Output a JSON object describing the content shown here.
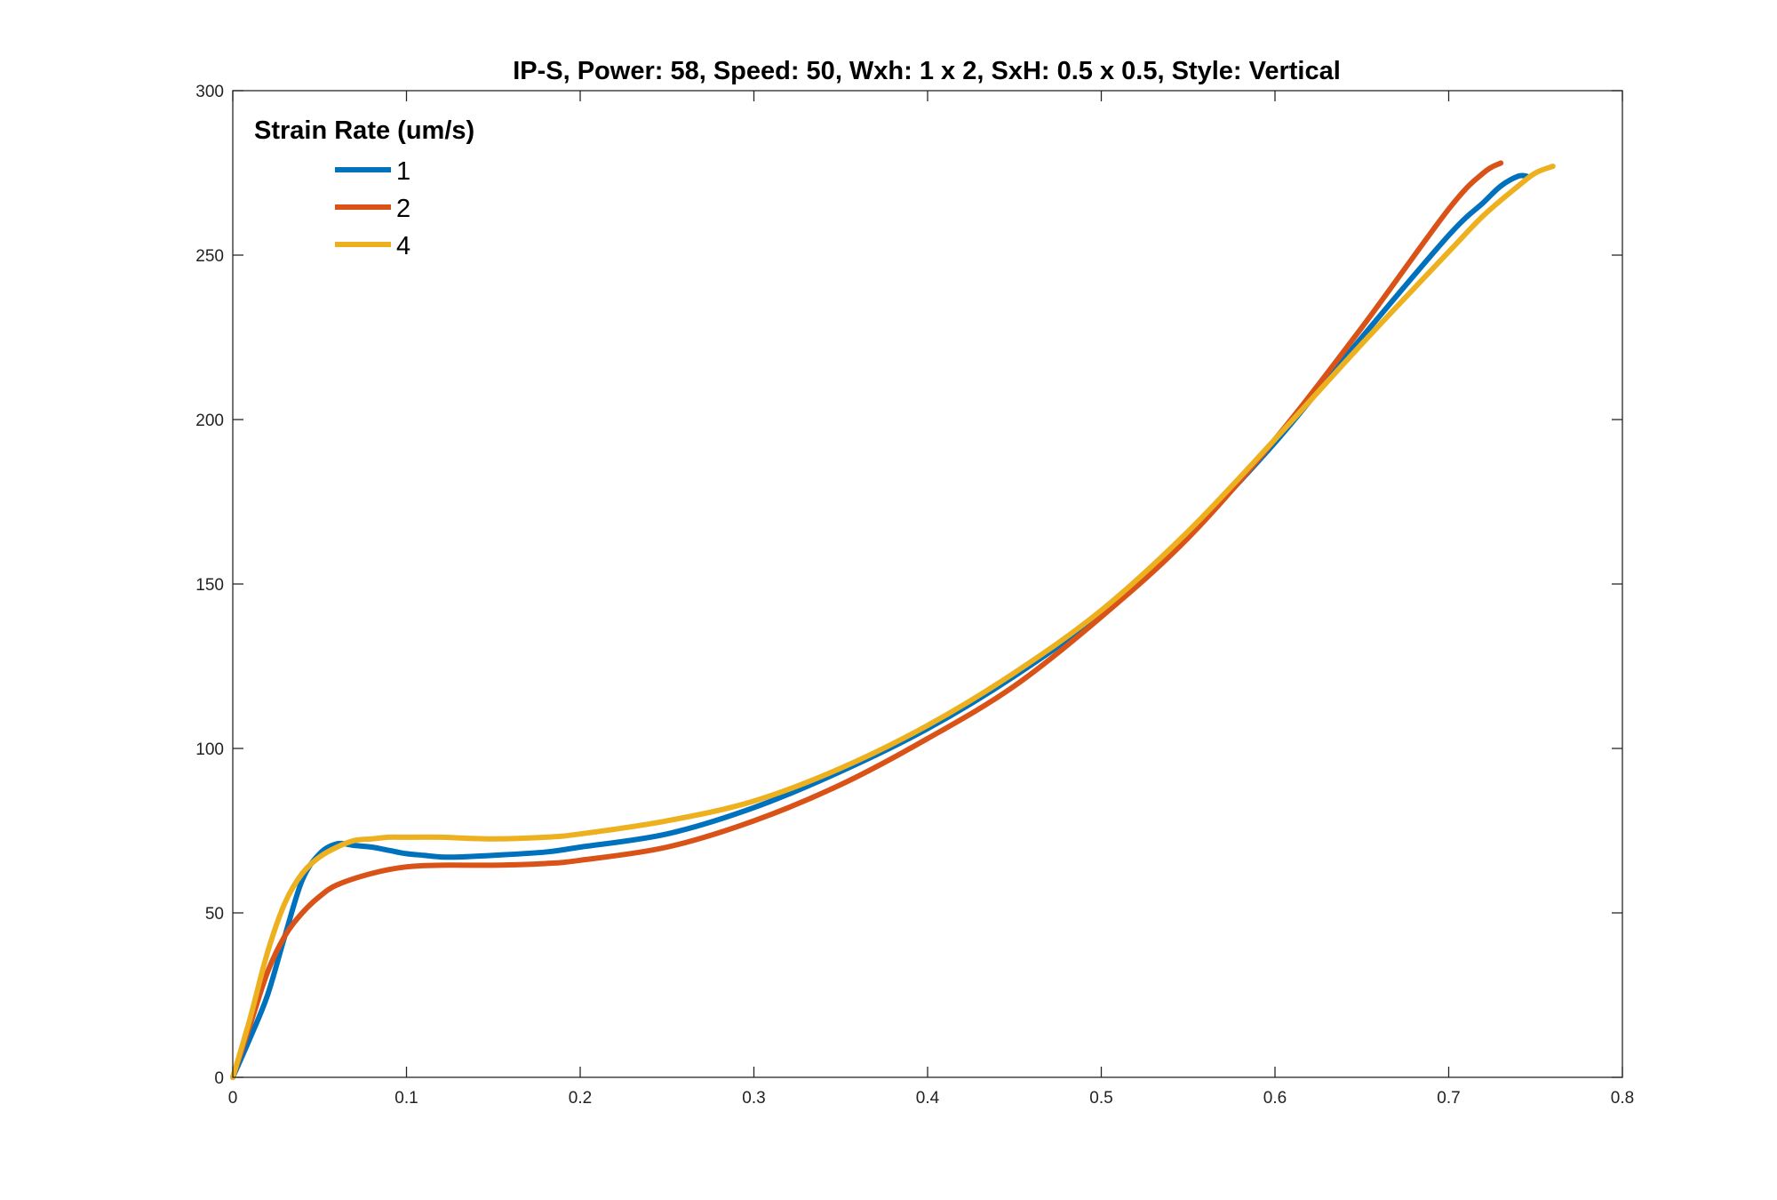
{
  "chart_data": {
    "type": "line",
    "title": "IP-S, Power: 58, Speed: 50, Wxh: 1 x 2, SxH: 0.5 x 0.5, Style: Vertical",
    "xlabel": "",
    "ylabel": "",
    "xlim": [
      0,
      0.8
    ],
    "ylim": [
      0,
      300
    ],
    "xticks": [
      0,
      0.1,
      0.2,
      0.3,
      0.4,
      0.5,
      0.6,
      0.7,
      0.8
    ],
    "xtick_labels": [
      "0",
      "0.1",
      "0.2",
      "0.3",
      "0.4",
      "0.5",
      "0.6",
      "0.7",
      "0.8"
    ],
    "yticks": [
      0,
      50,
      100,
      150,
      200,
      250,
      300
    ],
    "ytick_labels": [
      "0",
      "50",
      "100",
      "150",
      "200",
      "250",
      "300"
    ],
    "grid": false,
    "legend": {
      "title": "Strain Rate (um/s)",
      "placement": "top-left"
    },
    "series": [
      {
        "name": "1",
        "color": "#0072BD",
        "x": [
          0,
          0.01,
          0.02,
          0.03,
          0.04,
          0.05,
          0.06,
          0.07,
          0.08,
          0.09,
          0.1,
          0.11,
          0.12,
          0.13,
          0.15,
          0.18,
          0.2,
          0.25,
          0.3,
          0.35,
          0.4,
          0.45,
          0.5,
          0.55,
          0.6,
          0.65,
          0.7,
          0.72,
          0.73,
          0.74,
          0.745
        ],
        "y": [
          0,
          12,
          25,
          43,
          60,
          68,
          71,
          70.5,
          70,
          69,
          68,
          67.5,
          67,
          67,
          67.5,
          68.5,
          70,
          74,
          82,
          93,
          106,
          122,
          141,
          165,
          193,
          225,
          256,
          266,
          271,
          274,
          274
        ]
      },
      {
        "name": "2",
        "color": "#D95319",
        "x": [
          0,
          0.01,
          0.02,
          0.03,
          0.04,
          0.05,
          0.06,
          0.08,
          0.1,
          0.12,
          0.15,
          0.18,
          0.2,
          0.25,
          0.3,
          0.35,
          0.4,
          0.45,
          0.5,
          0.55,
          0.6,
          0.65,
          0.7,
          0.72,
          0.73
        ],
        "y": [
          0,
          16,
          32,
          43,
          50,
          55,
          58.5,
          62,
          64,
          64.5,
          64.5,
          65,
          66,
          70,
          78,
          89,
          103,
          119,
          140,
          164,
          194,
          228,
          264,
          275,
          278
        ]
      },
      {
        "name": "4",
        "color": "#EDB120",
        "x": [
          0,
          0.01,
          0.02,
          0.03,
          0.04,
          0.05,
          0.06,
          0.07,
          0.08,
          0.09,
          0.1,
          0.12,
          0.15,
          0.18,
          0.2,
          0.25,
          0.3,
          0.35,
          0.4,
          0.45,
          0.5,
          0.55,
          0.6,
          0.65,
          0.7,
          0.72,
          0.74,
          0.75,
          0.76
        ],
        "y": [
          0,
          18,
          38,
          53,
          62,
          67,
          70,
          72,
          72.5,
          73,
          73,
          73,
          72.5,
          73,
          74,
          78,
          84,
          94,
          107,
          123,
          142,
          166,
          194,
          223,
          251,
          262,
          271,
          275,
          277
        ]
      }
    ]
  }
}
